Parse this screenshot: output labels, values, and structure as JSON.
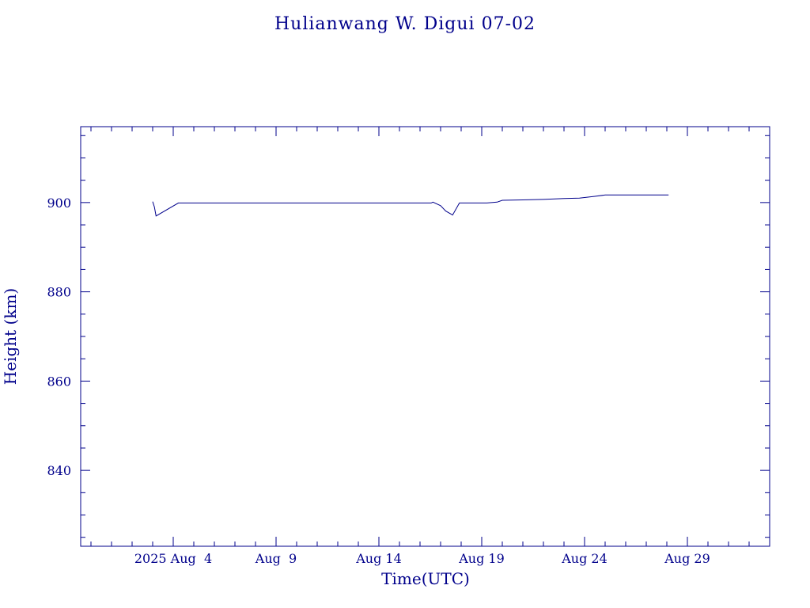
{
  "chart_data": {
    "type": "line",
    "title": "Hulianwang W. Digui 07-02",
    "xlabel": "Time(UTC)",
    "ylabel": "Height (km)",
    "xlim": [
      "2025-07-30T12:00",
      "2025-09-02T00:00"
    ],
    "ylim": [
      823,
      917
    ],
    "x_ticks": [
      {
        "date": "2025-08-04",
        "label": "2025 Aug  4"
      },
      {
        "date": "2025-08-09",
        "label": "Aug  9"
      },
      {
        "date": "2025-08-14",
        "label": "Aug 14"
      },
      {
        "date": "2025-08-19",
        "label": "Aug 19"
      },
      {
        "date": "2025-08-24",
        "label": "Aug 24"
      },
      {
        "date": "2025-08-29",
        "label": "Aug 29"
      }
    ],
    "y_ticks": [
      840,
      860,
      880,
      900
    ],
    "grid": false,
    "color": "#00008b",
    "series": [
      {
        "x": [
          "2025-08-03T00:00",
          "2025-08-03T02:00",
          "2025-08-03T04:00",
          "2025-08-04T06:00",
          "2025-08-08T00:00",
          "2025-08-12T00:00",
          "2025-08-16T00:00",
          "2025-08-16T13:00",
          "2025-08-16T15:00",
          "2025-08-17T00:00",
          "2025-08-17T06:00",
          "2025-08-17T14:00",
          "2025-08-17T22:00",
          "2025-08-19T06:00",
          "2025-08-19T18:00",
          "2025-08-20T00:00",
          "2025-08-21T00:00",
          "2025-08-22T00:00",
          "2025-08-23T00:00",
          "2025-08-23T18:00",
          "2025-08-24T12:00",
          "2025-08-25T00:00",
          "2025-08-26T00:00",
          "2025-08-27T00:00",
          "2025-08-28T02:00"
        ],
        "y": [
          900.2,
          899.0,
          897.0,
          899.9,
          899.9,
          899.9,
          899.9,
          899.9,
          900.1,
          899.3,
          898.1,
          897.2,
          899.9,
          899.9,
          900.1,
          900.5,
          900.6,
          900.7,
          900.9,
          901.0,
          901.4,
          901.7,
          901.7,
          901.7,
          901.7
        ]
      }
    ]
  }
}
